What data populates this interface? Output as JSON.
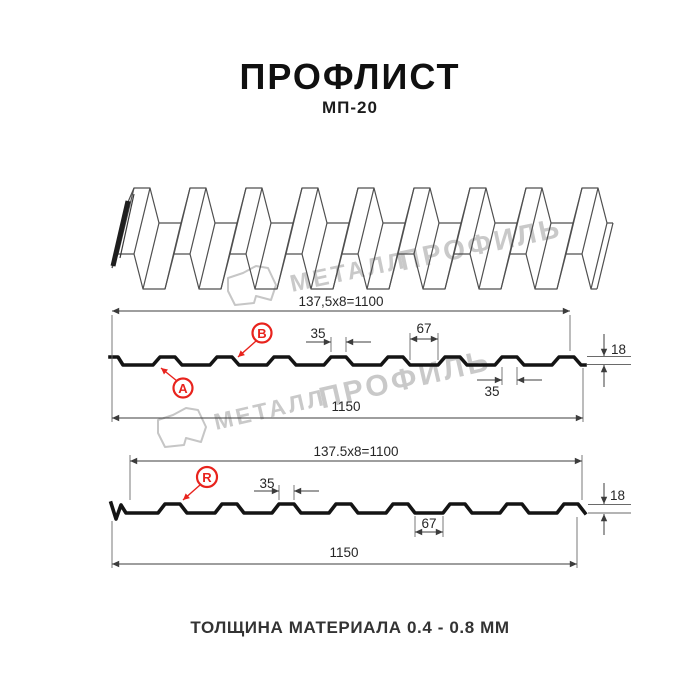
{
  "header": {
    "title": "ПРОФЛИСТ",
    "subtitle": "МП-20"
  },
  "watermark": {
    "word1": "МЕТАЛЛ",
    "word2": "ПРОФИЛЬ"
  },
  "drawing_a": {
    "module_dim": "137,5x8=1100",
    "crest_width": "35",
    "valley_width": "67",
    "profile_height": "18",
    "overall_width": "1150",
    "crest_width_bottom": "35",
    "side_a_label": "A",
    "side_b_label": "B"
  },
  "drawing_r": {
    "module_dim": "137.5x8=1100",
    "crest_width": "35",
    "valley_width": "67",
    "profile_height": "18",
    "overall_width": "1150",
    "side_r_label": "R"
  },
  "footer": {
    "caption": "ТОЛЩИНА МАТЕРИАЛА 0.4 - 0.8 ММ"
  },
  "colors": {
    "accent": "#e8231d",
    "ink": "#141414",
    "dim_line": "#3c3c3c",
    "watermark": "#c9c9c9"
  }
}
